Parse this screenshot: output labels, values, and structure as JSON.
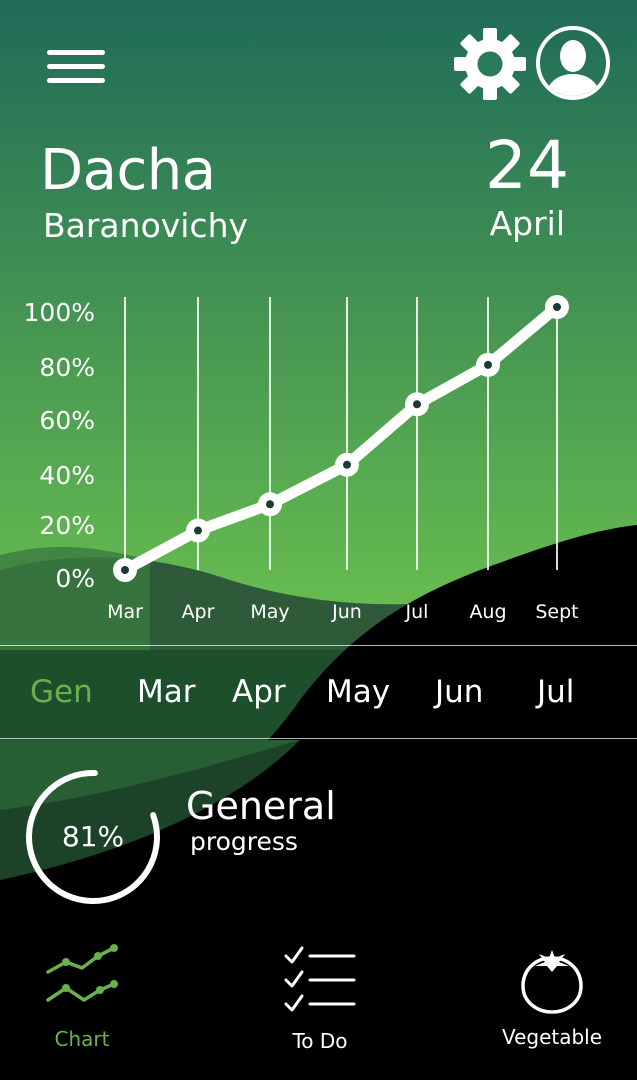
{
  "colors": {
    "accent_green": "#6ab04c",
    "sky_top": "#1f6b58",
    "sky_bottom": "#5fb64e",
    "foreground": "#ffffff",
    "ground": "#000000"
  },
  "header": {
    "menu_icon": "hamburger-icon",
    "settings_icon": "gear-icon",
    "profile_icon": "user-avatar-icon"
  },
  "place": {
    "title": "Dacha",
    "subtitle": "Baranovichy"
  },
  "date": {
    "day": "24",
    "month": "April"
  },
  "chart_data": {
    "type": "line",
    "x": [
      "Mar",
      "Apr",
      "May",
      "Jun",
      "Jul",
      "Aug",
      "Sept"
    ],
    "values": [
      0,
      15,
      25,
      40,
      63,
      78,
      100
    ],
    "y_ticks": [
      "100%",
      "80%",
      "60%",
      "40%",
      "20%",
      "0%"
    ],
    "ylim": [
      0,
      100
    ],
    "grid": "vertical"
  },
  "month_tabs": [
    {
      "label": "Gen",
      "active": true
    },
    {
      "label": "Mar",
      "active": false
    },
    {
      "label": "Apr",
      "active": false
    },
    {
      "label": "May",
      "active": false
    },
    {
      "label": "Jun",
      "active": false
    },
    {
      "label": "Jul",
      "active": false
    }
  ],
  "progress": {
    "value": 81,
    "value_label": "81%",
    "title": "General",
    "subtitle": "progress"
  },
  "nav": [
    {
      "label": "Chart",
      "icon": "chart-icon",
      "active": true
    },
    {
      "label": "To Do",
      "icon": "checklist-icon",
      "active": false
    },
    {
      "label": "Vegetable",
      "icon": "tomato-icon",
      "active": false
    }
  ]
}
